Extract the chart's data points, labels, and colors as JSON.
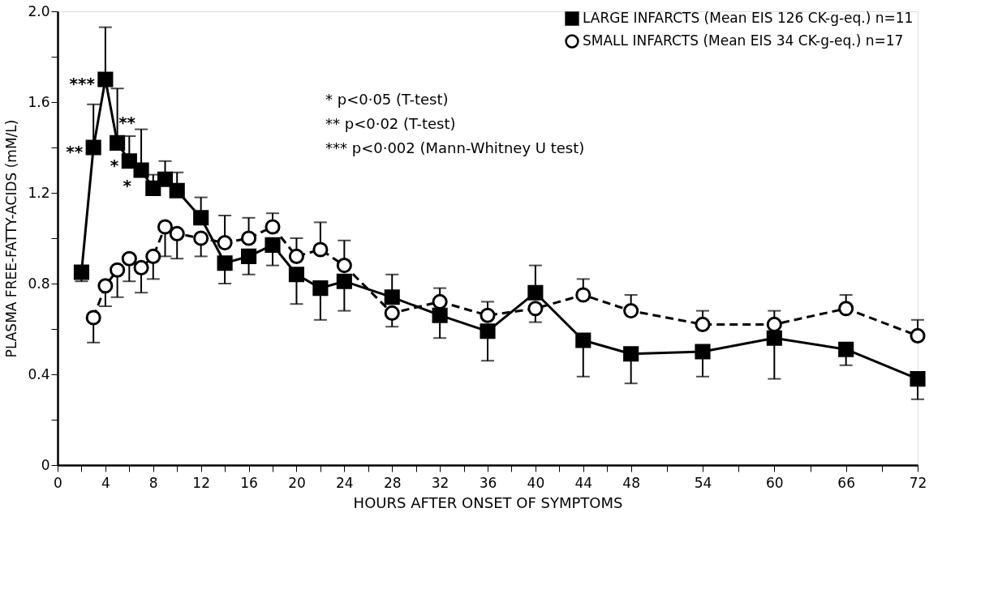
{
  "chart_data": {
    "type": "line",
    "xlabel": "HOURS AFTER ONSET OF SYMPTOMS",
    "ylabel": "PLASMA FREE-FATTY-ACIDS (mM/L)",
    "xlim": [
      0,
      72
    ],
    "ylim": [
      0,
      2.0
    ],
    "xticks": [
      0,
      {
        "value": 2,
        "label": null
      },
      4,
      {
        "value": 6,
        "label": null
      },
      8,
      {
        "value": 10,
        "label": null
      },
      12,
      {
        "value": 14,
        "label": null
      },
      16,
      {
        "value": 18,
        "label": null
      },
      20,
      {
        "value": 22,
        "label": null
      },
      24,
      {
        "value": 26,
        "label": null
      },
      28,
      {
        "value": 30,
        "label": null
      },
      32,
      {
        "value": 34,
        "label": null
      },
      36,
      {
        "value": 38,
        "label": null
      },
      40,
      {
        "value": 42,
        "label": null
      },
      44,
      {
        "value": 46,
        "label": null
      },
      48,
      {
        "value": 51,
        "label": null
      },
      54,
      {
        "value": 57,
        "label": null
      },
      60,
      {
        "value": 63,
        "label": null
      },
      66,
      {
        "value": 69,
        "label": null
      },
      72
    ],
    "yticks": [
      0,
      {
        "value": 0.2,
        "label": null
      },
      0.4,
      {
        "value": 0.6,
        "label": null
      },
      0.8,
      {
        "value": 1.0,
        "label": null
      },
      1.2,
      {
        "value": 1.4,
        "label": null
      },
      1.6,
      {
        "value": 1.8,
        "label": null
      },
      {
        "value": 2,
        "label": "2.0"
      }
    ],
    "grid": false,
    "legend": "top right",
    "series": [
      {
        "name": "LARGE INFARCTS (Mean EIS 126  CK-g-eq.) n=11",
        "color": "#000000",
        "marker": "square",
        "line_style": "solid",
        "x": [
          2,
          3,
          4,
          5,
          6,
          7,
          8,
          9,
          10,
          12,
          14,
          16,
          18,
          20,
          22,
          24,
          28,
          32,
          36,
          40,
          44,
          48,
          54,
          60,
          66,
          72
        ],
        "values": [
          0.85,
          1.4,
          1.7,
          1.42,
          1.34,
          1.3,
          1.22,
          1.26,
          1.21,
          1.09,
          0.89,
          0.92,
          0.97,
          0.84,
          0.78,
          0.81,
          0.74,
          0.66,
          0.59,
          0.76,
          0.55,
          0.49,
          0.5,
          0.56,
          0.51,
          0.38
        ],
        "errors": [
          [
            0.81,
            0.85
          ],
          [
            1.4,
            1.59
          ],
          [
            1.7,
            1.93
          ],
          [
            1.42,
            1.66
          ],
          [
            1.34,
            1.45
          ],
          [
            1.3,
            1.48
          ],
          [
            1.22,
            1.28
          ],
          [
            1.26,
            1.34
          ],
          [
            1.21,
            1.29
          ],
          [
            1.09,
            1.18
          ],
          [
            0.8,
            0.89
          ],
          [
            0.84,
            0.92
          ],
          [
            0.88,
            0.97
          ],
          [
            0.71,
            0.84
          ],
          [
            0.64,
            0.78
          ],
          [
            0.68,
            0.81
          ],
          [
            0.74,
            0.84
          ],
          [
            0.56,
            0.66
          ],
          [
            0.46,
            0.59
          ],
          [
            0.76,
            0.88
          ],
          [
            0.39,
            0.55
          ],
          [
            0.36,
            0.49
          ],
          [
            0.39,
            0.5
          ],
          [
            0.38,
            0.56
          ],
          [
            0.44,
            0.51
          ],
          [
            0.29,
            0.38
          ]
        ]
      },
      {
        "name": "SMALL INFARCTS (Mean EIS  34  CK-g-eq.) n=17",
        "color": "#000000",
        "marker": "circle",
        "line_style": "dashed",
        "x": [
          3,
          4,
          5,
          6,
          7,
          8,
          9,
          10,
          12,
          14,
          16,
          18,
          20,
          22,
          24,
          28,
          32,
          36,
          40,
          44,
          48,
          54,
          60,
          66,
          72
        ],
        "values": [
          0.65,
          0.79,
          0.86,
          0.91,
          0.87,
          0.92,
          1.05,
          1.02,
          1.0,
          0.98,
          1.0,
          1.05,
          0.92,
          0.95,
          0.88,
          0.67,
          0.72,
          0.66,
          0.69,
          0.75,
          0.68,
          0.62,
          0.62,
          0.69,
          0.57
        ],
        "errors": [
          [
            0.54,
            0.65
          ],
          [
            0.7,
            0.79
          ],
          [
            0.74,
            0.86
          ],
          [
            0.81,
            0.91
          ],
          [
            0.76,
            0.87
          ],
          [
            0.82,
            0.92
          ],
          [
            0.92,
            1.05
          ],
          [
            0.91,
            1.02
          ],
          [
            0.92,
            1.0
          ],
          [
            0.98,
            1.1
          ],
          [
            1.0,
            1.09
          ],
          [
            1.05,
            1.11
          ],
          [
            0.92,
            1.0
          ],
          [
            0.95,
            1.07
          ],
          [
            0.88,
            0.99
          ],
          [
            0.61,
            0.67
          ],
          [
            0.72,
            0.78
          ],
          [
            0.66,
            0.72
          ],
          [
            0.63,
            0.69
          ],
          [
            0.75,
            0.82
          ],
          [
            0.68,
            0.75
          ],
          [
            0.62,
            0.68
          ],
          [
            0.62,
            0.68
          ],
          [
            0.69,
            0.75
          ],
          [
            0.57,
            0.64
          ]
        ]
      }
    ],
    "annotations": [
      {
        "text": "***",
        "x": 4,
        "y": 1.7
      },
      {
        "text": "**",
        "x": 3,
        "y": 1.4
      },
      {
        "text": "**",
        "x": 5,
        "y": 1.42
      },
      {
        "text": "*",
        "x": 6,
        "y": 1.34
      },
      {
        "text": "*",
        "x": 7,
        "y": 1.3
      },
      "* p<0·05    (T-test)",
      "** p<0·02    (T-test)",
      "*** p<0·002  (Mann-Whitney  U test)"
    ]
  }
}
